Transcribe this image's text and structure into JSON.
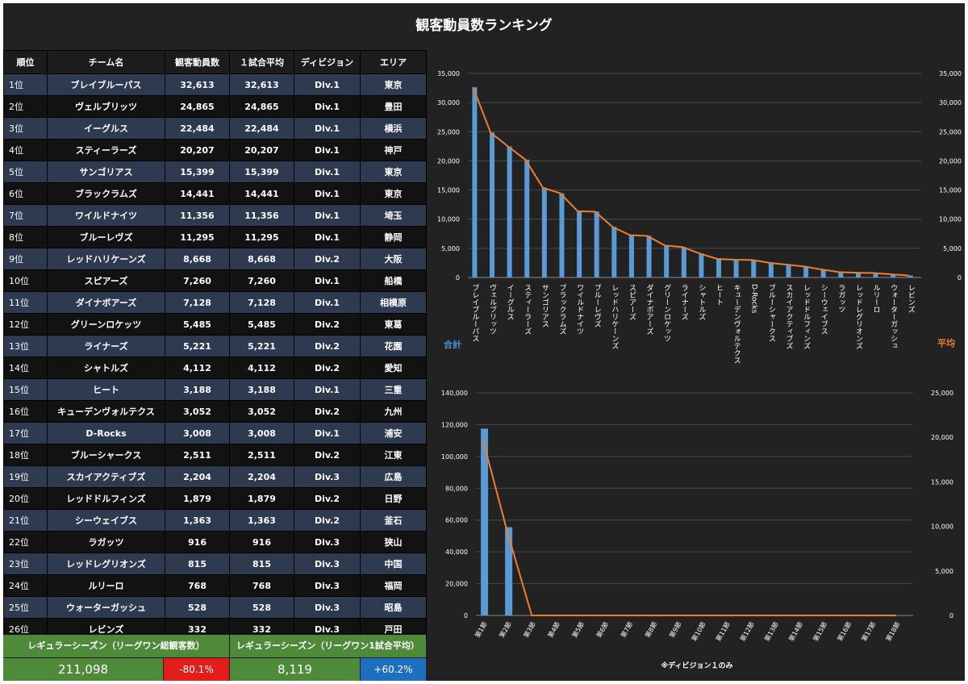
{
  "title": "観客動員数ランキング",
  "table": {
    "headers": [
      "順位",
      "チーム名",
      "観客動員数",
      "１試合平均",
      "ディビジョン",
      "エリア"
    ],
    "rows": [
      [
        "1位",
        "ブレイブルーパス",
        "32,613",
        "32,613",
        "Div.1",
        "東京"
      ],
      [
        "2位",
        "ヴェルブリッツ",
        "24,865",
        "24,865",
        "Div.1",
        "豊田"
      ],
      [
        "3位",
        "イーグルス",
        "22,484",
        "22,484",
        "Div.1",
        "横浜"
      ],
      [
        "4位",
        "スティーラーズ",
        "20,207",
        "20,207",
        "Div.1",
        "神戸"
      ],
      [
        "5位",
        "サンゴリアス",
        "15,399",
        "15,399",
        "Div.1",
        "東京"
      ],
      [
        "6位",
        "ブラックラムズ",
        "14,441",
        "14,441",
        "Div.1",
        "東京"
      ],
      [
        "7位",
        "ワイルドナイツ",
        "11,356",
        "11,356",
        "Div.1",
        "埼玉"
      ],
      [
        "8位",
        "ブルーレヴズ",
        "11,295",
        "11,295",
        "Div.1",
        "静岡"
      ],
      [
        "9位",
        "レッドハリケーンズ",
        "8,668",
        "8,668",
        "Div.2",
        "大阪"
      ],
      [
        "10位",
        "スピアーズ",
        "7,260",
        "7,260",
        "Div.1",
        "船橋"
      ],
      [
        "11位",
        "ダイナボアーズ",
        "7,128",
        "7,128",
        "Div.1",
        "相模原"
      ],
      [
        "12位",
        "グリーンロケッツ",
        "5,485",
        "5,485",
        "Div.2",
        "東葛"
      ],
      [
        "13位",
        "ライナーズ",
        "5,221",
        "5,221",
        "Div.2",
        "花園"
      ],
      [
        "14位",
        "シャトルズ",
        "4,112",
        "4,112",
        "Div.2",
        "愛知"
      ],
      [
        "15位",
        "ヒート",
        "3,188",
        "3,188",
        "Div.1",
        "三重"
      ],
      [
        "16位",
        "キューデンヴォルテクス",
        "3,052",
        "3,052",
        "Div.2",
        "九州"
      ],
      [
        "17位",
        "D-Rocks",
        "3,008",
        "3,008",
        "Div.1",
        "浦安"
      ],
      [
        "18位",
        "ブルーシャークス",
        "2,511",
        "2,511",
        "Div.2",
        "江東"
      ],
      [
        "19位",
        "スカイアクティブズ",
        "2,204",
        "2,204",
        "Div.3",
        "広島"
      ],
      [
        "20位",
        "レッドドルフィンズ",
        "1,879",
        "1,879",
        "Div.2",
        "日野"
      ],
      [
        "21位",
        "シーウェイブス",
        "1,363",
        "1,363",
        "Div.2",
        "釜石"
      ],
      [
        "22位",
        "ラガッツ",
        "916",
        "916",
        "Div.3",
        "狭山"
      ],
      [
        "23位",
        "レッドレグリオンズ",
        "815",
        "815",
        "Div.3",
        "中国"
      ],
      [
        "24位",
        "ルリーロ",
        "768",
        "768",
        "Div.3",
        "福岡"
      ],
      [
        "25位",
        "ウォーターガッシュ",
        "528",
        "528",
        "Div.3",
        "昭島"
      ],
      [
        "26位",
        "レビンズ",
        "332",
        "332",
        "Div.3",
        "戸田"
      ]
    ]
  },
  "summary": {
    "total_label": "レギュラーシーズン（リーグワン総観客数）",
    "avg_label": "レギュラーシーズン（リーグワン1試合平均）",
    "total_value": "211,098",
    "total_change": "-80.1%",
    "avg_value": "8,119",
    "avg_change": "+60.2%"
  },
  "colors": {
    "bar": "#5b9bd5",
    "line": "#ed7d31",
    "background": "#222222",
    "row_odd": "#2e3a50",
    "row_even": "#121212",
    "summary_green": "#4e8a3a",
    "negative": "#e31c1c",
    "positive": "#1f6fc1"
  },
  "chart_data": [
    {
      "type": "bar",
      "categories": [
        "ブレイブルーパス",
        "ヴェルブリッツ",
        "イーグルス",
        "スティーラーズ",
        "サンゴリアス",
        "ブラックラムズ",
        "ワイルドナイツ",
        "ブルーレヴズ",
        "レッドハリケーンズ",
        "スピアーズ",
        "ダイナボアーズ",
        "グリーンロケッツ",
        "ライナーズ",
        "シャトルズ",
        "ヒート",
        "キューデンヴォルテクス",
        "D-Rocks",
        "ブルーシャークス",
        "スカイアクティブズ",
        "レッドドルフィンズ",
        "シーウェイブス",
        "ラガッツ",
        "レッドレグリオンズ",
        "ルリーロ",
        "ウォーターガッシュ",
        "レビンズ"
      ],
      "series": [
        {
          "name": "合計",
          "type": "bar",
          "axis": "left",
          "values": [
            32613,
            24865,
            22484,
            20207,
            15399,
            14441,
            11356,
            11295,
            8668,
            7260,
            7128,
            5485,
            5221,
            4112,
            3188,
            3052,
            3008,
            2511,
            2204,
            1879,
            1363,
            916,
            815,
            768,
            528,
            332
          ]
        },
        {
          "name": "平均",
          "type": "line",
          "axis": "right",
          "values": [
            32613,
            24865,
            22484,
            20207,
            15399,
            14441,
            11356,
            11295,
            8668,
            7260,
            7128,
            5485,
            5221,
            4112,
            3188,
            3052,
            3008,
            2511,
            2204,
            1879,
            1363,
            916,
            815,
            768,
            528,
            332
          ]
        }
      ],
      "ylim": [
        0,
        35000
      ],
      "y2lim": [
        0,
        35000
      ],
      "y_ticks": [
        0,
        5000,
        10000,
        15000,
        20000,
        25000,
        30000,
        35000
      ],
      "y_tick_labels": [
        "0",
        "5,000",
        "10,000",
        "15,000",
        "20,000",
        "25,000",
        "30,000",
        "35,000"
      ],
      "y2_ticks": [
        0,
        5000,
        10000,
        15000,
        20000,
        25000,
        30000,
        35000
      ],
      "y2_tick_labels": [
        "0",
        "5,000",
        "10,000",
        "15,000",
        "20,000",
        "25,000",
        "30,000",
        "35,000"
      ],
      "ylabel": "合計",
      "y2label": "平均",
      "grid": true
    },
    {
      "type": "bar",
      "categories": [
        "第1節",
        "第2節",
        "第3節",
        "第4節",
        "第5節",
        "第6節",
        "第7節",
        "第8節",
        "第9節",
        "第10節",
        "第11節",
        "第12節",
        "第13節",
        "第14節",
        "第15節",
        "第16節",
        "第17節",
        "第18節"
      ],
      "series": [
        {
          "name": "合計",
          "type": "bar",
          "axis": "left",
          "values": [
            117500,
            55500,
            0,
            0,
            0,
            0,
            0,
            0,
            0,
            0,
            0,
            0,
            0,
            0,
            0,
            0,
            0,
            0
          ]
        },
        {
          "name": "平均",
          "type": "line",
          "axis": "right",
          "values": [
            19600,
            9300,
            0,
            0,
            0,
            0,
            0,
            0,
            0,
            0,
            0,
            0,
            0,
            0,
            0,
            0,
            0,
            0
          ]
        }
      ],
      "ylim": [
        0,
        140000
      ],
      "y2lim": [
        0,
        25000
      ],
      "y_ticks": [
        0,
        20000,
        40000,
        60000,
        80000,
        100000,
        120000,
        140000
      ],
      "y_tick_labels": [
        "0",
        "20,000",
        "40,000",
        "60,000",
        "80,000",
        "100,000",
        "120,000",
        "140,000"
      ],
      "y2_ticks": [
        0,
        5000,
        10000,
        15000,
        20000,
        25000
      ],
      "y2_tick_labels": [
        "0",
        "5,000",
        "10,000",
        "15,000",
        "20,000",
        "25,000"
      ],
      "annotation": "※ディビジョン１のみ",
      "grid": true
    }
  ]
}
